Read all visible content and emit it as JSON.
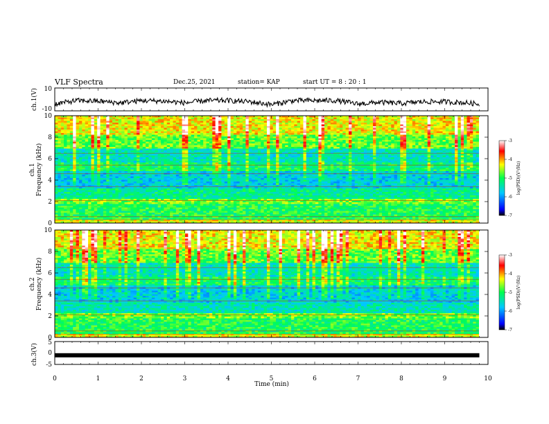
{
  "header": {
    "title": "VLF Spectra",
    "date": "Dec.25, 2021",
    "station": "station= KAP",
    "start": "start  UT =  8 : 20 : 1"
  },
  "chart_data": [
    {
      "type": "line",
      "panel": "ch1-waveform",
      "ylabel": "ch.1(V)",
      "ylim": [
        -10,
        10
      ],
      "yticks": [
        "10",
        "-10"
      ],
      "xlim": [
        0,
        10
      ],
      "series": [
        {
          "x": [
            0,
            0.5,
            1,
            1.5,
            2,
            2.5,
            3,
            3.5,
            4,
            4.5,
            5,
            5.5,
            6,
            6.5,
            7,
            7.5,
            8,
            8.5,
            9,
            9.5,
            9.8
          ],
          "y": [
            -4,
            -1,
            -1.5,
            -3,
            -1,
            -1.5,
            -3,
            -1,
            -1,
            -2,
            -4.5,
            -1,
            -1,
            -1,
            -4,
            -2.5,
            -3.5,
            -2,
            -2,
            -3,
            -4
          ]
        }
      ]
    },
    {
      "type": "heatmap",
      "panel": "ch1-spectrogram",
      "ylabel": "ch.1\nFrequency (kHz)",
      "ylim": [
        0,
        10
      ],
      "yticks": [
        "0",
        "2",
        "4",
        "6",
        "8",
        "10"
      ],
      "xlim": [
        0,
        10
      ],
      "colorbar": {
        "label": "log(PSD)(V²/Hz)",
        "range": [
          -7,
          -3
        ],
        "ticks": [
          "-3",
          "-4",
          "-5",
          "-6",
          "-7"
        ]
      }
    },
    {
      "type": "heatmap",
      "panel": "ch2-spectrogram",
      "ylabel": "ch.2\nFrequency (kHz)",
      "ylim": [
        0,
        10
      ],
      "yticks": [
        "0",
        "2",
        "4",
        "6",
        "8",
        "10"
      ],
      "xlim": [
        0,
        10
      ],
      "colorbar": {
        "label": "log(PSD)(V²/Hz)",
        "range": [
          -7,
          -3
        ],
        "ticks": [
          "-3",
          "-4",
          "-5",
          "-6",
          "-7"
        ]
      }
    },
    {
      "type": "line",
      "panel": "ch3-waveform",
      "ylabel": "ch.3(V)",
      "ylim": [
        -5,
        5
      ],
      "yticks": [
        "5",
        "0",
        "-5"
      ],
      "xlim": [
        0,
        10
      ],
      "xticks": [
        "0",
        "1",
        "2",
        "3",
        "4",
        "5",
        "6",
        "7",
        "8",
        "9",
        "10"
      ],
      "xlabel": "Time (min)",
      "series": [
        {
          "x": [
            0,
            9.8
          ],
          "y": [
            -1,
            -1
          ]
        }
      ]
    }
  ],
  "labels": {
    "ch1": "ch.1(V)",
    "ch1_freq_a": "ch.1",
    "ch1_freq_b": "Frequency (kHz)",
    "ch2_freq_a": "ch.2",
    "ch2_freq_b": "Frequency (kHz)",
    "ch3": "ch.3(V)",
    "xlabel": "Time (min)",
    "colorbar": "log(PSD)(V²/Hz)"
  }
}
